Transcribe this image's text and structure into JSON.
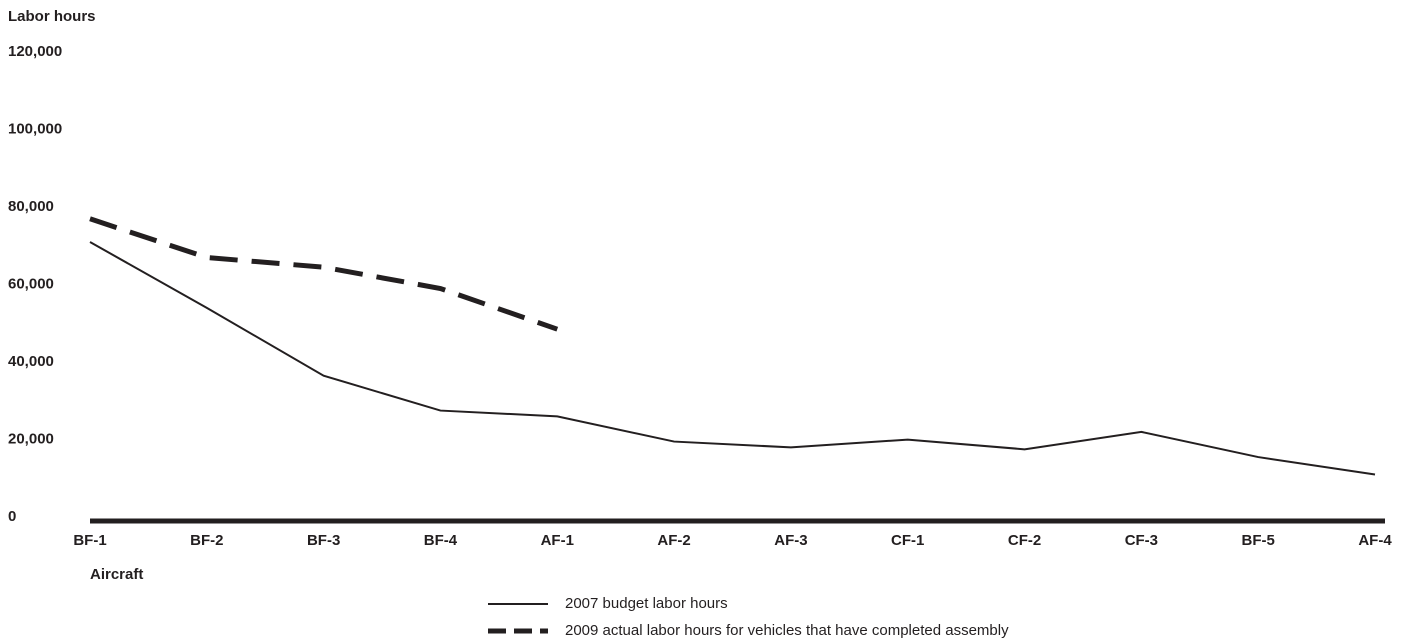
{
  "chart_data": {
    "type": "line",
    "ylabel": "Labor hours",
    "xlabel": "Aircraft",
    "categories": [
      "BF-1",
      "BF-2",
      "BF-3",
      "BF-4",
      "AF-1",
      "AF-2",
      "AF-3",
      "CF-1",
      "CF-2",
      "CF-3",
      "BF-5",
      "AF-4"
    ],
    "series": [
      {
        "name": "2007 budget labor hours",
        "color": "#231f20",
        "style": "solid",
        "values": [
          72000,
          55000,
          37500,
          28500,
          27000,
          20500,
          19000,
          21000,
          18500,
          23000,
          16500,
          12000
        ]
      },
      {
        "name": "2009 actual labor hours for vehicles that have completed assembly",
        "color": "#231f20",
        "style": "dashed",
        "values": [
          78000,
          68000,
          65500,
          60000,
          49500,
          null,
          null,
          null,
          null,
          null,
          null,
          null
        ]
      }
    ],
    "ylim": [
      0,
      120000
    ],
    "yticks": [
      0,
      {
        "value": 20000,
        "label": "20,000"
      },
      {
        "value": 40000,
        "label": "40,000"
      },
      {
        "value": 60000,
        "label": "60,000"
      },
      {
        "value": 80000,
        "label": "80,000"
      },
      {
        "value": 100000,
        "label": "100,000"
      },
      {
        "value": 120000,
        "label": "120,000"
      }
    ],
    "grid": false
  }
}
